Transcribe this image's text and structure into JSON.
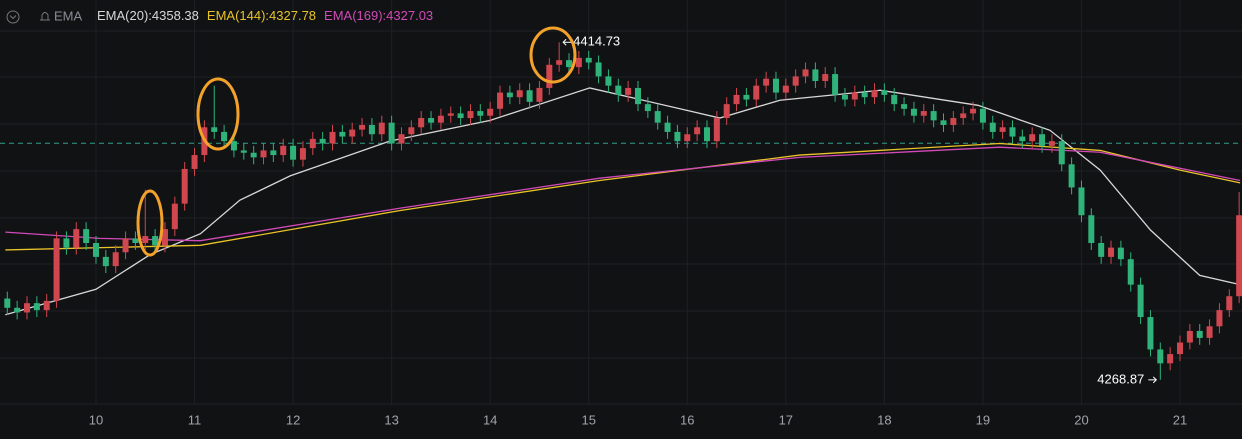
{
  "chart_data": {
    "type": "candlestick",
    "indicator": "EMA",
    "up_color": "#d0474f",
    "down_color": "#2fb37b",
    "xlim": [
      9.026,
      21.629
    ],
    "xticks": [
      10,
      11,
      12,
      13,
      14,
      15,
      16,
      17,
      18,
      19,
      20,
      21
    ],
    "ylim": [
      4258,
      4433
    ],
    "grid": true,
    "price_line": {
      "value": 4371.1,
      "color": "#2f9e8a"
    },
    "x": [
      9.1,
      9.2,
      9.3,
      9.4,
      9.5,
      9.6,
      9.7,
      9.8,
      9.9,
      10.0,
      10.1,
      10.2,
      10.3,
      10.4,
      10.5,
      10.6,
      10.7,
      10.8,
      10.9,
      11.0,
      11.1,
      11.2,
      11.3,
      11.4,
      11.5,
      11.6,
      11.7,
      11.8,
      11.9,
      12.0,
      12.1,
      12.2,
      12.3,
      12.4,
      12.5,
      12.6,
      12.7,
      12.8,
      12.9,
      13.0,
      13.1,
      13.2,
      13.3,
      13.4,
      13.5,
      13.6,
      13.7,
      13.8,
      13.9,
      14.0,
      14.1,
      14.2,
      14.3,
      14.4,
      14.5,
      14.6,
      14.7,
      14.8,
      14.9,
      15.0,
      15.1,
      15.2,
      15.3,
      15.4,
      15.5,
      15.6,
      15.7,
      15.8,
      15.9,
      16.0,
      16.1,
      16.2,
      16.3,
      16.4,
      16.5,
      16.6,
      16.7,
      16.8,
      16.9,
      17.0,
      17.1,
      17.2,
      17.3,
      17.4,
      17.5,
      17.6,
      17.7,
      17.8,
      17.9,
      18.0,
      18.1,
      18.2,
      18.3,
      18.4,
      18.5,
      18.6,
      18.7,
      18.8,
      18.9,
      19.0,
      19.1,
      19.2,
      19.3,
      19.4,
      19.5,
      19.6,
      19.7,
      19.8,
      19.9,
      20.0,
      20.1,
      20.2,
      20.3,
      20.4,
      20.5,
      20.6,
      20.7,
      20.8,
      20.9,
      21.0,
      21.1,
      21.2,
      21.3,
      21.4,
      21.5,
      21.6
    ],
    "open": [
      4304,
      4300,
      4298,
      4302,
      4299,
      4303,
      4330,
      4326,
      4334,
      4328,
      4322,
      4318,
      4324,
      4330,
      4328,
      4331,
      4327,
      4334,
      4345,
      4360,
      4366,
      4378,
      4376,
      4372,
      4368,
      4367,
      4365,
      4368,
      4366,
      4370,
      4364,
      4369,
      4373,
      4371,
      4376,
      4374,
      4377,
      4379,
      4375,
      4380,
      4371,
      4375,
      4378,
      4382,
      4380,
      4383,
      4384,
      4382,
      4385,
      4383,
      4386,
      4393,
      4391,
      4394,
      4389,
      4395,
      4405,
      4407,
      4404,
      4408,
      4406,
      4400,
      4396,
      4392,
      4395,
      4388,
      4385,
      4380,
      4376,
      4372,
      4375,
      4378,
      4372,
      4382,
      4388,
      4392,
      4390,
      4396,
      4399,
      4393,
      4396,
      4400,
      4403,
      4398,
      4401,
      4392,
      4390,
      4393,
      4391,
      4394,
      4392,
      4388,
      4386,
      4383,
      4385,
      4381,
      4379,
      4382,
      4384,
      4386,
      4380,
      4376,
      4378,
      4374,
      4372,
      4375,
      4370,
      4372,
      4362,
      4352,
      4340,
      4328,
      4322,
      4326,
      4321,
      4310,
      4296,
      4282,
      4276,
      4280,
      4285,
      4290,
      4287,
      4292,
      4299,
      4305
    ],
    "high": [
      4307,
      4303,
      4305,
      4305,
      4306,
      4333,
      4333,
      4337,
      4337,
      4331,
      4325,
      4327,
      4333,
      4333,
      4351,
      4334,
      4337,
      4348,
      4363,
      4369,
      4381,
      4396,
      4379,
      4375,
      4371,
      4370,
      4371,
      4371,
      4373,
      4373,
      4372,
      4376,
      4376,
      4379,
      4379,
      4380,
      4382,
      4382,
      4383,
      4383,
      4378,
      4381,
      4385,
      4385,
      4386,
      4387,
      4387,
      4388,
      4388,
      4389,
      4396,
      4396,
      4397,
      4397,
      4398,
      4408,
      4414.73,
      4410,
      4411,
      4411,
      4409,
      4403,
      4399,
      4398,
      4398,
      4391,
      4388,
      4383,
      4379,
      4378,
      4381,
      4381,
      4385,
      4391,
      4395,
      4395,
      4399,
      4402,
      4402,
      4399,
      4403,
      4406,
      4406,
      4404,
      4404,
      4395,
      4396,
      4396,
      4397,
      4397,
      4395,
      4391,
      4389,
      4388,
      4388,
      4384,
      4385,
      4387,
      4389,
      4389,
      4383,
      4381,
      4381,
      4377,
      4378,
      4378,
      4375,
      4375,
      4365,
      4355,
      4343,
      4331,
      4329,
      4329,
      4324,
      4313,
      4299,
      4285,
      4283,
      4288,
      4293,
      4293,
      4295,
      4302,
      4308,
      4350
    ],
    "low": [
      4297,
      4295,
      4295,
      4296,
      4296,
      4300,
      4323,
      4323,
      4325,
      4319,
      4315,
      4315,
      4321,
      4325,
      4325,
      4324,
      4324,
      4331,
      4342,
      4357,
      4363,
      4373,
      4369,
      4365,
      4364,
      4362,
      4362,
      4363,
      4363,
      4361,
      4361,
      4366,
      4368,
      4368,
      4371,
      4371,
      4374,
      4372,
      4372,
      4368,
      4368,
      4372,
      4375,
      4377,
      4377,
      4380,
      4379,
      4379,
      4380,
      4380,
      4383,
      4388,
      4388,
      4386,
      4386,
      4392,
      4402,
      4401,
      4401,
      4403,
      4397,
      4393,
      4389,
      4389,
      4385,
      4382,
      4377,
      4373,
      4369,
      4369,
      4372,
      4369,
      4369,
      4379,
      4385,
      4387,
      4387,
      4393,
      4390,
      4390,
      4393,
      4397,
      4395,
      4395,
      4389,
      4387,
      4387,
      4388,
      4388,
      4389,
      4385,
      4383,
      4380,
      4380,
      4378,
      4376,
      4376,
      4379,
      4381,
      4377,
      4373,
      4373,
      4371,
      4369,
      4369,
      4367,
      4367,
      4359,
      4349,
      4337,
      4325,
      4319,
      4319,
      4318,
      4307,
      4293,
      4279,
      4268.87,
      4273,
      4277,
      4282,
      4284,
      4284,
      4289,
      4296,
      4302
    ],
    "close": [
      4300,
      4298,
      4302,
      4299,
      4303,
      4330,
      4326,
      4334,
      4328,
      4322,
      4318,
      4324,
      4330,
      4328,
      4331,
      4327,
      4334,
      4345,
      4360,
      4366,
      4378,
      4376,
      4372,
      4368,
      4367,
      4365,
      4368,
      4366,
      4370,
      4364,
      4369,
      4373,
      4371,
      4376,
      4374,
      4377,
      4379,
      4375,
      4380,
      4371,
      4375,
      4378,
      4382,
      4380,
      4383,
      4384,
      4382,
      4385,
      4383,
      4386,
      4393,
      4391,
      4394,
      4389,
      4395,
      4405,
      4407,
      4404,
      4408,
      4406,
      4400,
      4396,
      4392,
      4395,
      4388,
      4385,
      4380,
      4376,
      4372,
      4375,
      4378,
      4372,
      4382,
      4388,
      4392,
      4390,
      4396,
      4399,
      4393,
      4396,
      4400,
      4403,
      4398,
      4401,
      4392,
      4390,
      4393,
      4391,
      4394,
      4392,
      4388,
      4386,
      4383,
      4385,
      4381,
      4379,
      4382,
      4384,
      4386,
      4380,
      4376,
      4378,
      4374,
      4372,
      4375,
      4370,
      4372,
      4362,
      4352,
      4340,
      4328,
      4322,
      4326,
      4321,
      4310,
      4296,
      4282,
      4276,
      4280,
      4285,
      4290,
      4287,
      4292,
      4299,
      4305,
      4340
    ],
    "series": [
      {
        "name": "EMA(20):4358.38",
        "color": "#d8d8d8",
        "x": [
          9.08,
          10.0,
          10.55,
          11.06,
          11.46,
          11.97,
          12.98,
          14.0,
          15.01,
          16.03,
          16.33,
          16.94,
          17.96,
          18.95,
          19.68,
          20.19,
          20.7,
          21.2,
          21.61
        ],
        "values": [
          4297,
          4308,
          4323,
          4332,
          4346.5,
          4357,
          4372,
          4381,
          4395,
          4385,
          4382,
          4389.7,
          4394,
          4387.5,
          4376.7,
          4359.5,
          4333.6,
          4314,
          4310
        ]
      },
      {
        "name": "EMA(144):4327.78",
        "color": "#e8c32a",
        "x": [
          9.08,
          11.06,
          13.08,
          15.11,
          17.14,
          19.17,
          20.19,
          21.0,
          21.61
        ],
        "values": [
          4325,
          4327,
          4342,
          4355,
          4366,
          4371,
          4368,
          4359.5,
          4354
        ]
      },
      {
        "name": "EMA(169):4327.03",
        "color": "#d14ab8",
        "x": [
          9.08,
          10.04,
          11.06,
          13.08,
          15.11,
          17.14,
          19.17,
          20.19,
          21.0,
          21.61
        ],
        "values": [
          4332.7,
          4330,
          4329,
          4343,
          4356,
          4365,
          4369.4,
          4367.2,
          4360.3,
          4355
        ]
      }
    ]
  }
}
